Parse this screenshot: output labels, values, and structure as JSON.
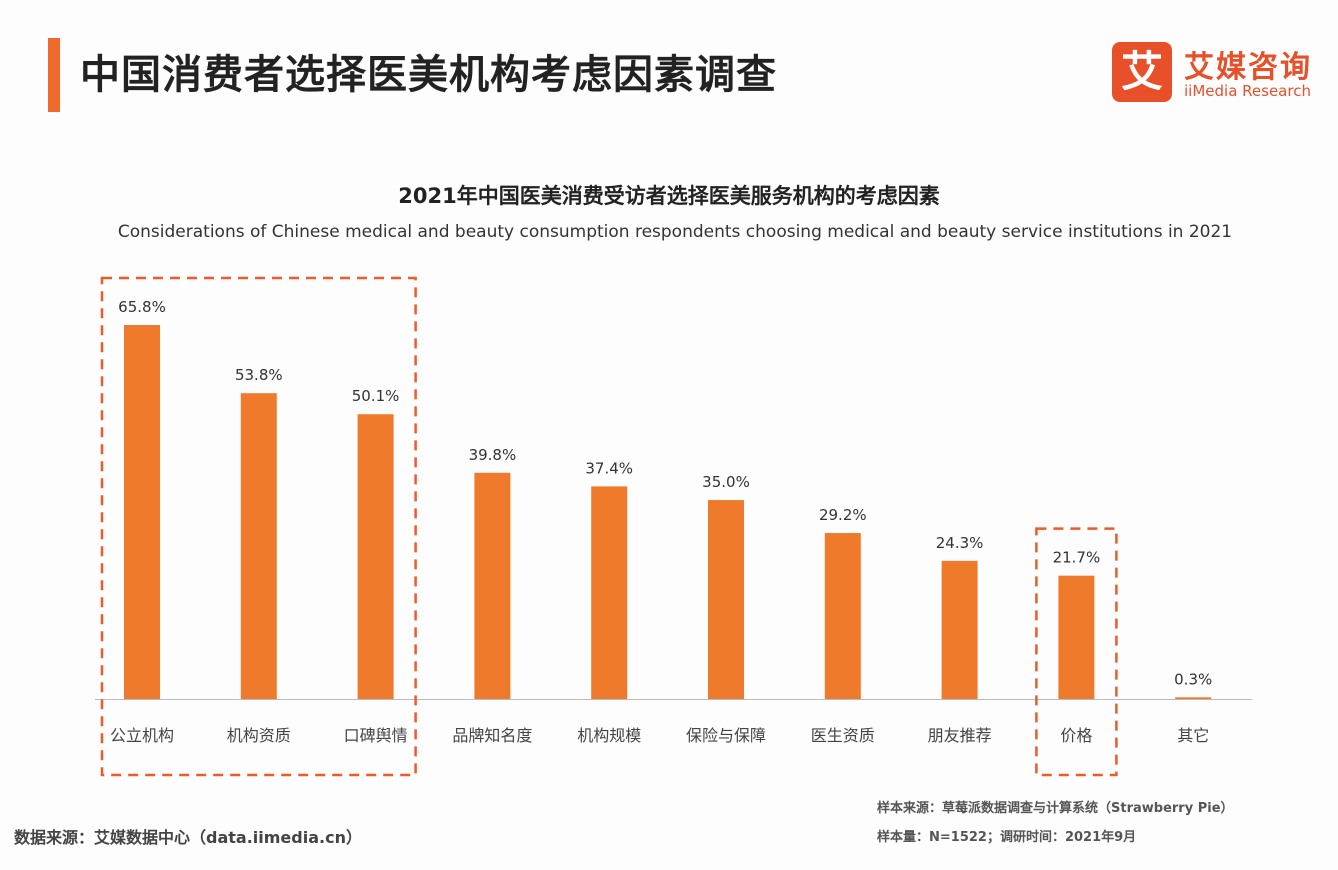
{
  "header": {
    "title": "中国消费者选择医美机构考虑因素调查"
  },
  "logo": {
    "mark": "艾",
    "name_cn": "艾媒咨询",
    "name_en": "iiMedia Research"
  },
  "chart_data": {
    "type": "bar",
    "title": "2021年中国医美消费受访者选择医美服务机构的考虑因素",
    "subtitle": "Considerations of Chinese medical and beauty consumption respondents choosing medical and beauty service institutions in 2021",
    "categories": [
      "公立机构",
      "机构资质",
      "口碑舆情",
      "品牌知名度",
      "机构规模",
      "保险与保障",
      "医生资质",
      "朋友推荐",
      "价格",
      "其它"
    ],
    "values": [
      65.8,
      53.8,
      50.1,
      39.8,
      37.4,
      35.0,
      29.2,
      24.3,
      21.7,
      0.3
    ],
    "data_labels": [
      "65.8%",
      "53.8%",
      "50.1%",
      "39.8%",
      "37.4%",
      "35.0%",
      "29.2%",
      "24.3%",
      "21.7%",
      "0.3%"
    ],
    "unit": "%",
    "ylim": [
      0,
      70
    ],
    "grid": false,
    "bar_color": "#ef7a2c",
    "highlight_color": "#ef5a2b",
    "highlighted_groups": [
      [
        "公立机构",
        "机构资质",
        "口碑舆情"
      ],
      [
        "价格"
      ]
    ]
  },
  "footer": {
    "source": "数据来源：艾媒数据中心（data.iimedia.cn）",
    "sample_source": "样本来源：草莓派数据调查与计算系统（Strawberry Pie）",
    "sample_info": "样本量：N=1522；调研时间：2021年9月"
  }
}
